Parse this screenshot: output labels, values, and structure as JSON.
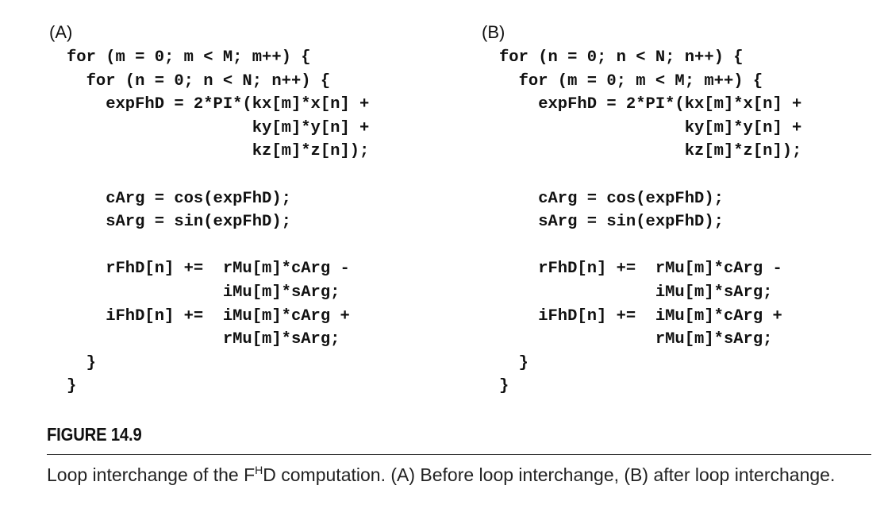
{
  "panels": [
    {
      "label": "(A)",
      "code_lines": [
        "for (m = 0; m < M; m++) {",
        "  for (n = 0; n < N; n++) {",
        "    expFhD = 2*PI*(kx[m]*x[n] +",
        "                   ky[m]*y[n] +",
        "                   kz[m]*z[n]);",
        "",
        "    cArg = cos(expFhD);",
        "    sArg = sin(expFhD);",
        "",
        "    rFhD[n] +=  rMu[m]*cArg -",
        "                iMu[m]*sArg;",
        "    iFhD[n] +=  iMu[m]*cArg +",
        "                rMu[m]*sArg;",
        "  }",
        "}"
      ]
    },
    {
      "label": "(B)",
      "code_lines": [
        "for (n = 0; n < N; n++) {",
        "  for (m = 0; m < M; m++) {",
        "    expFhD = 2*PI*(kx[m]*x[n] +",
        "                   ky[m]*y[n] +",
        "                   kz[m]*z[n]);",
        "",
        "    cArg = cos(expFhD);",
        "    sArg = sin(expFhD);",
        "",
        "    rFhD[n] +=  rMu[m]*cArg -",
        "                iMu[m]*sArg;",
        "    iFhD[n] +=  iMu[m]*cArg +",
        "                rMu[m]*sArg;",
        "  }",
        "}"
      ]
    }
  ],
  "figure": {
    "label": "FIGURE 14.9",
    "caption_pre": "Loop interchange of the F",
    "caption_sup": "H",
    "caption_post": "D computation. (A) Before loop interchange, (B) after loop interchange."
  }
}
